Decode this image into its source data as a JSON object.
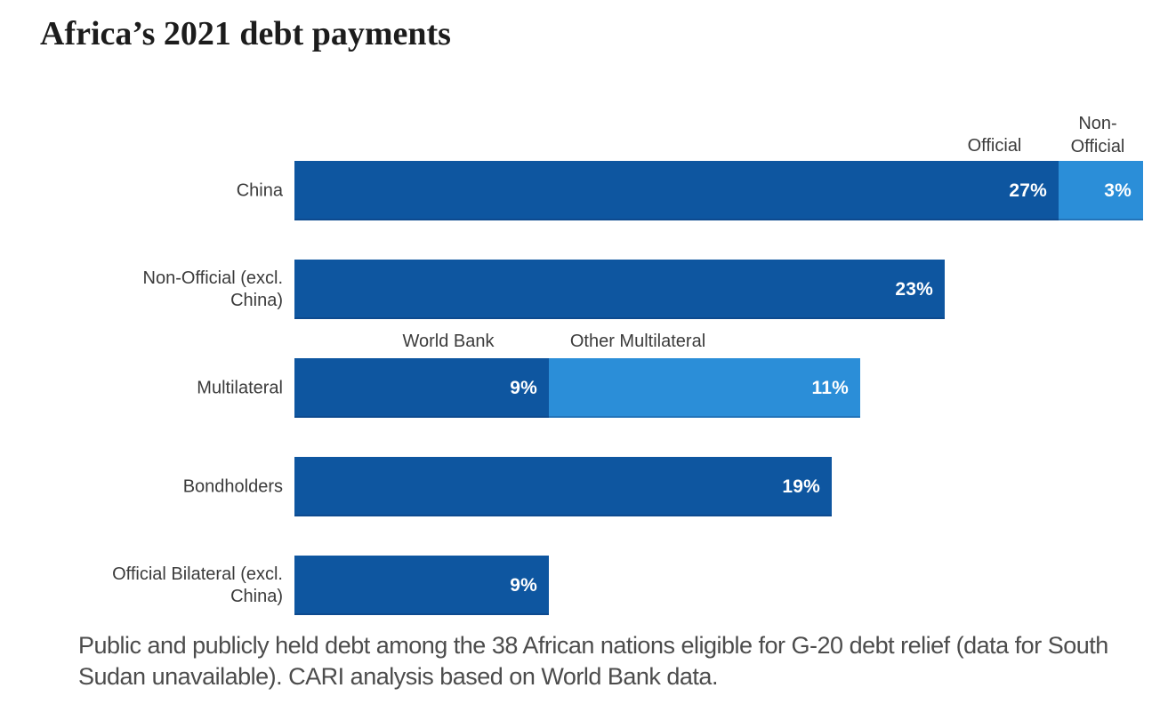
{
  "title": "Africa’s 2021 debt payments",
  "colors": {
    "bar_dark_blue": "#0e56a0",
    "bar_light_blue": "#2b8ed8",
    "value_label_text": "#ffffff",
    "category_label_text": "#3b3b3b",
    "caption_text": "#4c4c4c",
    "background": "#ffffff"
  },
  "chart": {
    "annotations": {
      "official": "Official",
      "non_official": "Non-\nOfficial",
      "world_bank": "World Bank",
      "other_multilateral": "Other Multilateral"
    },
    "rows": [
      {
        "label": "China",
        "segments": [
          {
            "value": 27,
            "display": "27%",
            "tone": "dark",
            "segment_name": "Official"
          },
          {
            "value": 3,
            "display": "3%",
            "tone": "light",
            "segment_name": "Non-Official"
          }
        ]
      },
      {
        "label": "Non-Official (excl.\nChina)",
        "segments": [
          {
            "value": 23,
            "display": "23%",
            "tone": "dark",
            "segment_name": ""
          }
        ]
      },
      {
        "label": "Multilateral",
        "segments": [
          {
            "value": 9,
            "display": "9%",
            "tone": "dark",
            "segment_name": "World Bank"
          },
          {
            "value": 11,
            "display": "11%",
            "tone": "light",
            "segment_name": "Other Multilateral"
          }
        ]
      },
      {
        "label": "Bondholders",
        "segments": [
          {
            "value": 19,
            "display": "19%",
            "tone": "dark",
            "segment_name": ""
          }
        ]
      },
      {
        "label": "Official Bilateral (excl.\nChina)",
        "segments": [
          {
            "value": 9,
            "display": "9%",
            "tone": "dark",
            "segment_name": ""
          }
        ]
      }
    ]
  },
  "caption": "Public and publicly held debt among the 38 African nations eligible for G-20 debt relief (data for South\nSudan unavailable). CARI analysis based on World Bank data.",
  "chart_data": {
    "type": "bar",
    "orientation": "horizontal",
    "stacked": true,
    "title": "Africa’s 2021 debt payments",
    "categories": [
      "China",
      "Non-Official (excl. China)",
      "Multilateral",
      "Bondholders",
      "Official Bilateral (excl. China)"
    ],
    "series": [
      {
        "name": "Primary segment (dark blue)",
        "values": [
          27,
          23,
          9,
          19,
          9
        ]
      },
      {
        "name": "Secondary segment (light blue)",
        "values": [
          3,
          0,
          11,
          0,
          0
        ]
      }
    ],
    "segment_labels": [
      [
        "Official",
        "Non-Official"
      ],
      [
        "",
        null
      ],
      [
        "World Bank",
        "Other Multilateral"
      ],
      [
        "",
        null
      ],
      [
        "",
        null
      ]
    ],
    "unit": "%",
    "xlabel": "",
    "ylabel": "",
    "xlim": [
      0,
      30
    ],
    "grid": false,
    "axes_shown": false,
    "value_labels": "inside right end of each segment, white",
    "legend_position": "inline annotations above bars",
    "caption": "Public and publicly held debt among the 38 African nations eligible for G-20 debt relief (data for South Sudan unavailable). CARI analysis based on World Bank data."
  }
}
